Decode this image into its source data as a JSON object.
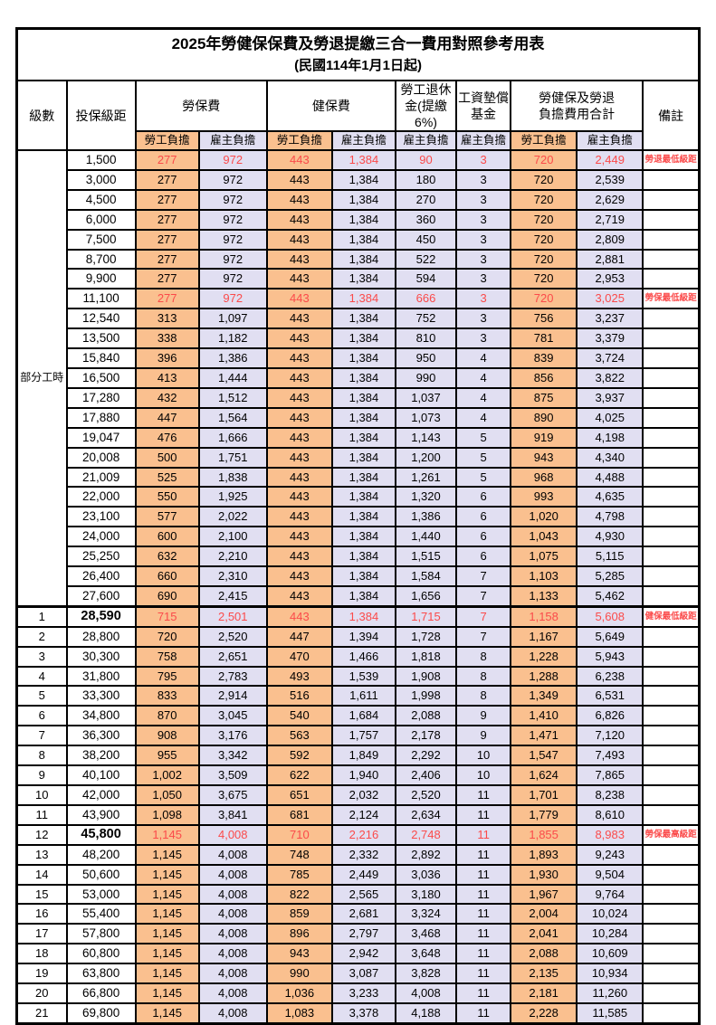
{
  "title": "2025年勞健保保費及勞退提繳三合一費用對照參考用表",
  "subtitle": "(民國114年1月1日起)",
  "colors": {
    "employee_bg": "#FAC08F",
    "employer_bg": "#E1DFF2",
    "highlight_red": "#FB4A4A",
    "border": "#000000"
  },
  "header": {
    "level_label": "級數",
    "bracket_label": "投保級距",
    "note_label": "備註",
    "groups": [
      {
        "label": "勞保費",
        "subs": [
          "勞工負擔",
          "雇主負擔"
        ]
      },
      {
        "label": "健保費",
        "subs": [
          "勞工負擔",
          "雇主負擔"
        ]
      },
      {
        "label": "勞工退休\n金(提繳6%)",
        "subs": [
          "雇主負擔"
        ]
      },
      {
        "label": "工資墊償\n基金",
        "subs": [
          "雇主負擔"
        ]
      },
      {
        "label": "勞健保及勞退\n負擔費用合計",
        "subs": [
          "勞工負擔",
          "雇主負擔"
        ]
      }
    ]
  },
  "part_time_label": "部分工時",
  "part_time_span": 23,
  "value_col_classes": [
    "emp",
    "own",
    "emp",
    "own",
    "own",
    "own",
    "emp",
    "own"
  ],
  "rows": [
    {
      "level": "",
      "bracket": "1,500",
      "v": [
        "277",
        "972",
        "443",
        "1,384",
        "90",
        "3",
        "720",
        "2,449"
      ],
      "note": "勞退最低級距",
      "red": true
    },
    {
      "level": "",
      "bracket": "3,000",
      "v": [
        "277",
        "972",
        "443",
        "1,384",
        "180",
        "3",
        "720",
        "2,539"
      ],
      "note": ""
    },
    {
      "level": "",
      "bracket": "4,500",
      "v": [
        "277",
        "972",
        "443",
        "1,384",
        "270",
        "3",
        "720",
        "2,629"
      ],
      "note": ""
    },
    {
      "level": "",
      "bracket": "6,000",
      "v": [
        "277",
        "972",
        "443",
        "1,384",
        "360",
        "3",
        "720",
        "2,719"
      ],
      "note": ""
    },
    {
      "level": "",
      "bracket": "7,500",
      "v": [
        "277",
        "972",
        "443",
        "1,384",
        "450",
        "3",
        "720",
        "2,809"
      ],
      "note": ""
    },
    {
      "level": "",
      "bracket": "8,700",
      "v": [
        "277",
        "972",
        "443",
        "1,384",
        "522",
        "3",
        "720",
        "2,881"
      ],
      "note": ""
    },
    {
      "level": "",
      "bracket": "9,900",
      "v": [
        "277",
        "972",
        "443",
        "1,384",
        "594",
        "3",
        "720",
        "2,953"
      ],
      "note": ""
    },
    {
      "level": "",
      "bracket": "11,100",
      "v": [
        "277",
        "972",
        "443",
        "1,384",
        "666",
        "3",
        "720",
        "3,025"
      ],
      "note": "勞保最低級距",
      "red": true
    },
    {
      "level": "",
      "bracket": "12,540",
      "v": [
        "313",
        "1,097",
        "443",
        "1,384",
        "752",
        "3",
        "756",
        "3,237"
      ],
      "note": ""
    },
    {
      "level": "",
      "bracket": "13,500",
      "v": [
        "338",
        "1,182",
        "443",
        "1,384",
        "810",
        "3",
        "781",
        "3,379"
      ],
      "note": ""
    },
    {
      "level": "",
      "bracket": "15,840",
      "v": [
        "396",
        "1,386",
        "443",
        "1,384",
        "950",
        "4",
        "839",
        "3,724"
      ],
      "note": ""
    },
    {
      "level": "",
      "bracket": "16,500",
      "v": [
        "413",
        "1,444",
        "443",
        "1,384",
        "990",
        "4",
        "856",
        "3,822"
      ],
      "note": ""
    },
    {
      "level": "",
      "bracket": "17,280",
      "v": [
        "432",
        "1,512",
        "443",
        "1,384",
        "1,037",
        "4",
        "875",
        "3,937"
      ],
      "note": ""
    },
    {
      "level": "",
      "bracket": "17,880",
      "v": [
        "447",
        "1,564",
        "443",
        "1,384",
        "1,073",
        "4",
        "890",
        "4,025"
      ],
      "note": ""
    },
    {
      "level": "",
      "bracket": "19,047",
      "v": [
        "476",
        "1,666",
        "443",
        "1,384",
        "1,143",
        "5",
        "919",
        "4,198"
      ],
      "note": ""
    },
    {
      "level": "",
      "bracket": "20,008",
      "v": [
        "500",
        "1,751",
        "443",
        "1,384",
        "1,200",
        "5",
        "943",
        "4,340"
      ],
      "note": ""
    },
    {
      "level": "",
      "bracket": "21,009",
      "v": [
        "525",
        "1,838",
        "443",
        "1,384",
        "1,261",
        "5",
        "968",
        "4,488"
      ],
      "note": ""
    },
    {
      "level": "",
      "bracket": "22,000",
      "v": [
        "550",
        "1,925",
        "443",
        "1,384",
        "1,320",
        "6",
        "993",
        "4,635"
      ],
      "note": ""
    },
    {
      "level": "",
      "bracket": "23,100",
      "v": [
        "577",
        "2,022",
        "443",
        "1,384",
        "1,386",
        "6",
        "1,020",
        "4,798"
      ],
      "note": ""
    },
    {
      "level": "",
      "bracket": "24,000",
      "v": [
        "600",
        "2,100",
        "443",
        "1,384",
        "1,440",
        "6",
        "1,043",
        "4,930"
      ],
      "note": ""
    },
    {
      "level": "",
      "bracket": "25,250",
      "v": [
        "632",
        "2,210",
        "443",
        "1,384",
        "1,515",
        "6",
        "1,075",
        "5,115"
      ],
      "note": ""
    },
    {
      "level": "",
      "bracket": "26,400",
      "v": [
        "660",
        "2,310",
        "443",
        "1,384",
        "1,584",
        "7",
        "1,103",
        "5,285"
      ],
      "note": ""
    },
    {
      "level": "",
      "bracket": "27,600",
      "v": [
        "690",
        "2,415",
        "443",
        "1,384",
        "1,656",
        "7",
        "1,133",
        "5,462"
      ],
      "note": ""
    },
    {
      "level": "1",
      "bracket": "28,590",
      "v": [
        "715",
        "2,501",
        "443",
        "1,384",
        "1,715",
        "7",
        "1,158",
        "5,608"
      ],
      "note": "健保最低級距",
      "red": true,
      "bold": true,
      "thick_top": true
    },
    {
      "level": "2",
      "bracket": "28,800",
      "v": [
        "720",
        "2,520",
        "447",
        "1,394",
        "1,728",
        "7",
        "1,167",
        "5,649"
      ],
      "note": ""
    },
    {
      "level": "3",
      "bracket": "30,300",
      "v": [
        "758",
        "2,651",
        "470",
        "1,466",
        "1,818",
        "8",
        "1,228",
        "5,943"
      ],
      "note": ""
    },
    {
      "level": "4",
      "bracket": "31,800",
      "v": [
        "795",
        "2,783",
        "493",
        "1,539",
        "1,908",
        "8",
        "1,288",
        "6,238"
      ],
      "note": ""
    },
    {
      "level": "5",
      "bracket": "33,300",
      "v": [
        "833",
        "2,914",
        "516",
        "1,611",
        "1,998",
        "8",
        "1,349",
        "6,531"
      ],
      "note": ""
    },
    {
      "level": "6",
      "bracket": "34,800",
      "v": [
        "870",
        "3,045",
        "540",
        "1,684",
        "2,088",
        "9",
        "1,410",
        "6,826"
      ],
      "note": ""
    },
    {
      "level": "7",
      "bracket": "36,300",
      "v": [
        "908",
        "3,176",
        "563",
        "1,757",
        "2,178",
        "9",
        "1,471",
        "7,120"
      ],
      "note": ""
    },
    {
      "level": "8",
      "bracket": "38,200",
      "v": [
        "955",
        "3,342",
        "592",
        "1,849",
        "2,292",
        "10",
        "1,547",
        "7,493"
      ],
      "note": ""
    },
    {
      "level": "9",
      "bracket": "40,100",
      "v": [
        "1,002",
        "3,509",
        "622",
        "1,940",
        "2,406",
        "10",
        "1,624",
        "7,865"
      ],
      "note": ""
    },
    {
      "level": "10",
      "bracket": "42,000",
      "v": [
        "1,050",
        "3,675",
        "651",
        "2,032",
        "2,520",
        "11",
        "1,701",
        "8,238"
      ],
      "note": ""
    },
    {
      "level": "11",
      "bracket": "43,900",
      "v": [
        "1,098",
        "3,841",
        "681",
        "2,124",
        "2,634",
        "11",
        "1,779",
        "8,610"
      ],
      "note": ""
    },
    {
      "level": "12",
      "bracket": "45,800",
      "v": [
        "1,145",
        "4,008",
        "710",
        "2,216",
        "2,748",
        "11",
        "1,855",
        "8,983"
      ],
      "note": "勞保最高級距",
      "red": true,
      "bold": true
    },
    {
      "level": "13",
      "bracket": "48,200",
      "v": [
        "1,145",
        "4,008",
        "748",
        "2,332",
        "2,892",
        "11",
        "1,893",
        "9,243"
      ],
      "note": ""
    },
    {
      "level": "14",
      "bracket": "50,600",
      "v": [
        "1,145",
        "4,008",
        "785",
        "2,449",
        "3,036",
        "11",
        "1,930",
        "9,504"
      ],
      "note": ""
    },
    {
      "level": "15",
      "bracket": "53,000",
      "v": [
        "1,145",
        "4,008",
        "822",
        "2,565",
        "3,180",
        "11",
        "1,967",
        "9,764"
      ],
      "note": ""
    },
    {
      "level": "16",
      "bracket": "55,400",
      "v": [
        "1,145",
        "4,008",
        "859",
        "2,681",
        "3,324",
        "11",
        "2,004",
        "10,024"
      ],
      "note": ""
    },
    {
      "level": "17",
      "bracket": "57,800",
      "v": [
        "1,145",
        "4,008",
        "896",
        "2,797",
        "3,468",
        "11",
        "2,041",
        "10,284"
      ],
      "note": ""
    },
    {
      "level": "18",
      "bracket": "60,800",
      "v": [
        "1,145",
        "4,008",
        "943",
        "2,942",
        "3,648",
        "11",
        "2,088",
        "10,609"
      ],
      "note": ""
    },
    {
      "level": "19",
      "bracket": "63,800",
      "v": [
        "1,145",
        "4,008",
        "990",
        "3,087",
        "3,828",
        "11",
        "2,135",
        "10,934"
      ],
      "note": ""
    },
    {
      "level": "20",
      "bracket": "66,800",
      "v": [
        "1,145",
        "4,008",
        "1,036",
        "3,233",
        "4,008",
        "11",
        "2,181",
        "11,260"
      ],
      "note": ""
    },
    {
      "level": "21",
      "bracket": "69,800",
      "v": [
        "1,145",
        "4,008",
        "1,083",
        "3,378",
        "4,188",
        "11",
        "2,228",
        "11,585"
      ],
      "note": ""
    }
  ]
}
